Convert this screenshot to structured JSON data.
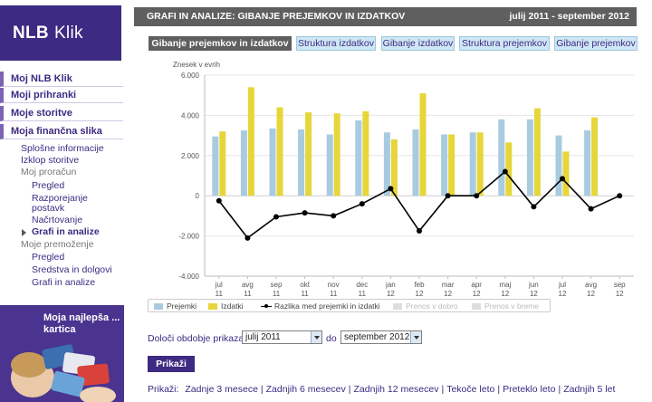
{
  "app": {
    "logo_main": "NLB",
    "logo_sub": "Klik"
  },
  "header": {
    "title": "GRAFI IN ANALIZE: GIBANJE PREJEMKOV IN IZDATKOV",
    "period": "julij 2011 - september 2012"
  },
  "tabs": [
    {
      "label": "Gibanje prejemkov in izdatkov",
      "active": true
    },
    {
      "label": "Struktura izdatkov",
      "active": false
    },
    {
      "label": "Gibanje izdatkov",
      "active": false
    },
    {
      "label": "Struktura prejemkov",
      "active": false
    },
    {
      "label": "Gibanje prejemkov",
      "active": false
    }
  ],
  "sidebar": {
    "majors": [
      "Moj NLB Klik",
      "Moji prihranki",
      "Moje storitve",
      "Moja finančna slika"
    ],
    "items": [
      {
        "label": "Splošne informacije",
        "level": 1
      },
      {
        "label": "Izklop storitve",
        "level": 1
      },
      {
        "label": "Moj proračun",
        "level": 1,
        "group": true
      },
      {
        "label": "Pregled",
        "level": 2
      },
      {
        "label": "Razporejanje",
        "level": 2
      },
      {
        "label": "postavk",
        "level": 2
      },
      {
        "label": "Načrtovanje",
        "level": 2
      },
      {
        "label": "Grafi in analize",
        "level": 2,
        "active": true
      },
      {
        "label": "Moje premoženje",
        "level": 1,
        "group": true
      },
      {
        "label": "Pregled",
        "level": 2
      },
      {
        "label": "Sredstva in dolgovi",
        "level": 2
      },
      {
        "label": "Grafi in analize",
        "level": 2
      }
    ]
  },
  "promo": {
    "title": "Moja najlepša ... kartica"
  },
  "chart_data": {
    "type": "bar",
    "ylabel": "Znesek v evrih",
    "ylim": [
      -4000,
      6000
    ],
    "yticks": [
      "6.000",
      "4.000",
      "2.000",
      "0",
      "-2.000",
      "-4.000"
    ],
    "ytick_values": [
      6000,
      4000,
      2000,
      0,
      -2000,
      -4000
    ],
    "categories": [
      [
        "jul",
        "11"
      ],
      [
        "avg",
        "11"
      ],
      [
        "sep",
        "11"
      ],
      [
        "okt",
        "11"
      ],
      [
        "nov",
        "11"
      ],
      [
        "dec",
        "11"
      ],
      [
        "jan",
        "12"
      ],
      [
        "feb",
        "12"
      ],
      [
        "mar",
        "12"
      ],
      [
        "apr",
        "12"
      ],
      [
        "maj",
        "12"
      ],
      [
        "jun",
        "12"
      ],
      [
        "jul",
        "12"
      ],
      [
        "avg",
        "12"
      ],
      [
        "sep",
        "12"
      ]
    ],
    "series": [
      {
        "name": "Prejemki",
        "kind": "bar",
        "color": "#a9cbe0",
        "values": [
          2950,
          3250,
          3350,
          3300,
          3050,
          3750,
          3150,
          3300,
          3050,
          3150,
          3800,
          3800,
          3000,
          3250,
          null
        ]
      },
      {
        "name": "Izdatki",
        "kind": "bar",
        "color": "#e6d639",
        "values": [
          3200,
          5400,
          4400,
          4150,
          4100,
          4200,
          2800,
          5100,
          3050,
          3150,
          2650,
          4350,
          2200,
          3900,
          null
        ]
      },
      {
        "name": "Razlika med prejemki in izdatki",
        "kind": "line",
        "color": "#000000",
        "values": [
          -250,
          -2100,
          -1050,
          -850,
          -1000,
          -400,
          350,
          -1750,
          0,
          0,
          1200,
          -550,
          850,
          -650,
          0
        ]
      }
    ],
    "legend_extra": [
      "Prenos v dobro",
      "Prenos v breme"
    ],
    "grid": true
  },
  "controls": {
    "period_label": "Določi obdobje prikaza",
    "from_value": "julij 2011",
    "to_label": "do",
    "to_value": "september 2012",
    "submit_label": "Prikaži"
  },
  "quick": {
    "label": "Prikaži:",
    "links": [
      "Zadnje 3 mesece",
      "Zadnjih 6 mesecev",
      "Zadnjih 12 mesecev",
      "Tekoče leto",
      "Preteklo leto",
      "Zadnjih 5 let"
    ]
  }
}
